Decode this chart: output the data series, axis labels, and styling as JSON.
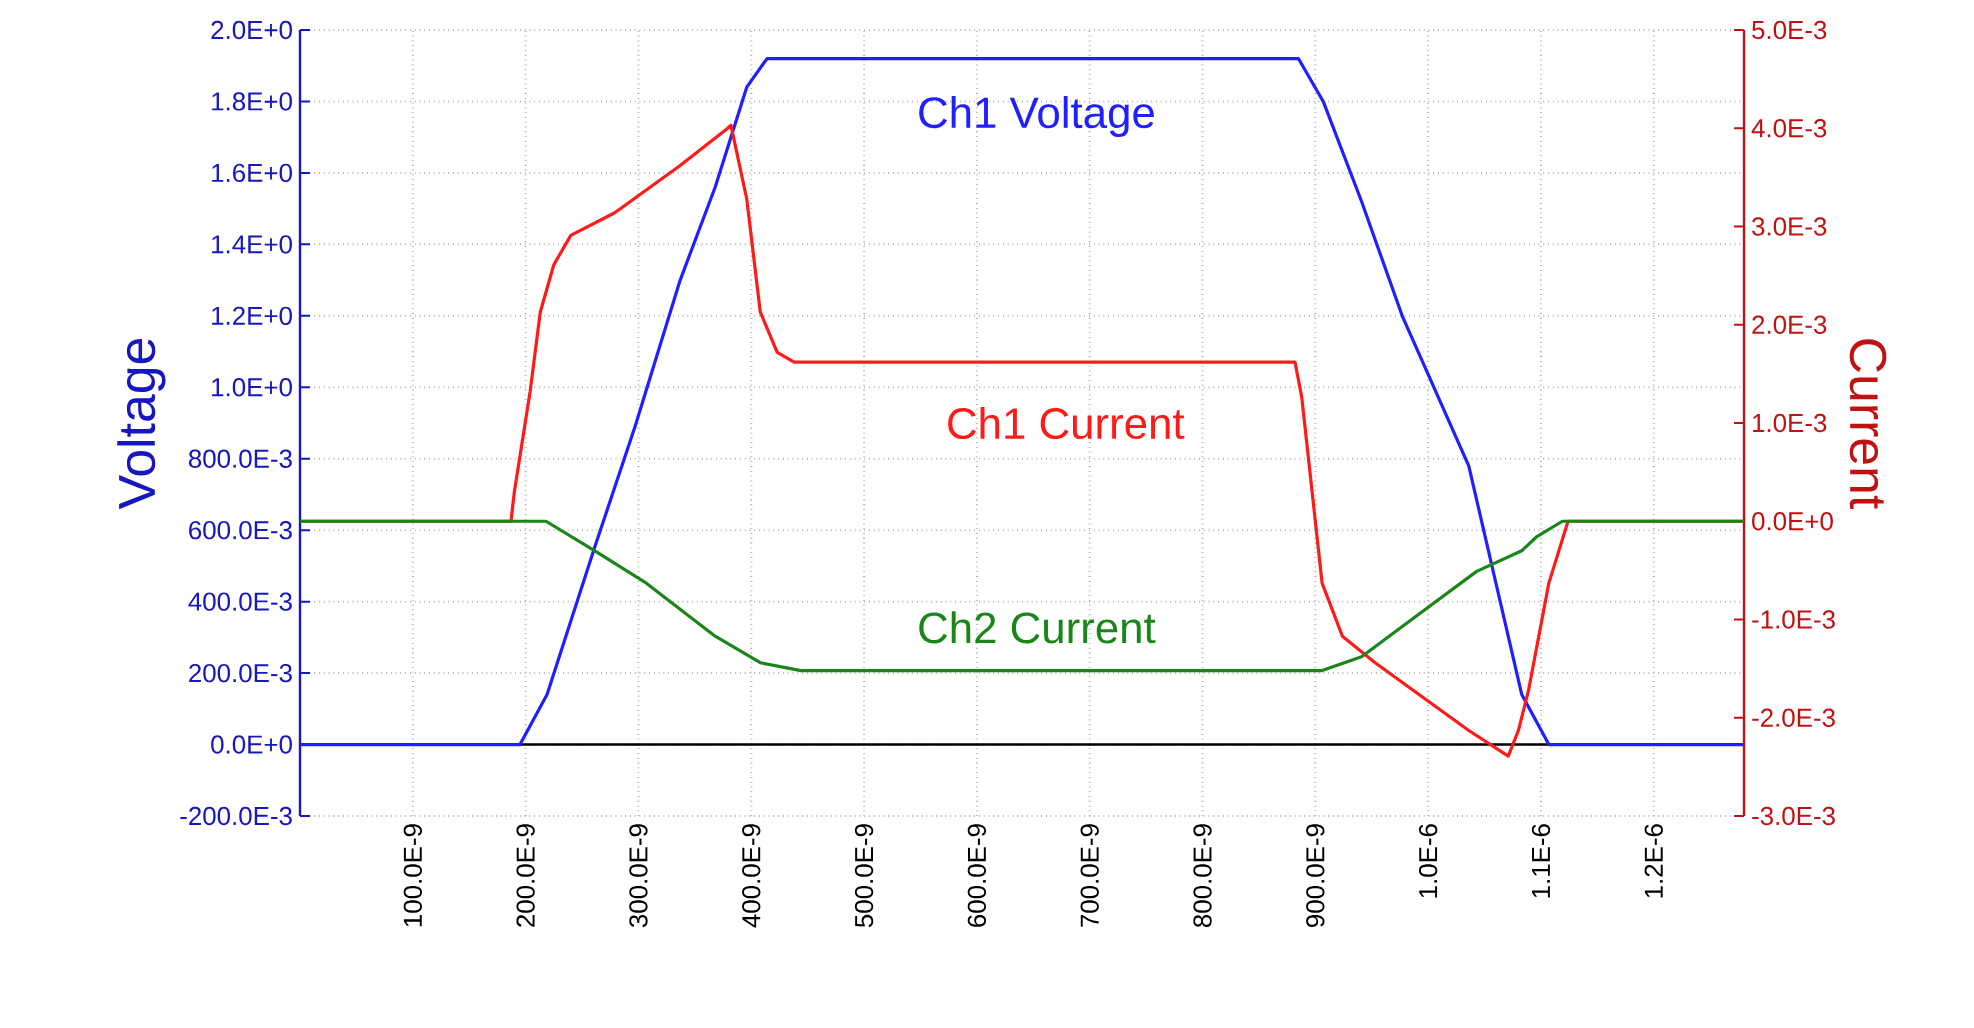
{
  "chart_data": {
    "type": "line",
    "ylabel": "Voltage",
    "y2label": "Current",
    "series": [
      {
        "name": "Ch1 Voltage",
        "color": "#1f1fff",
        "x": [
          0,
          1.95e-07,
          2.19e-07,
          2.61e-07,
          2.97e-07,
          3.37e-07,
          3.68e-07,
          3.85e-07,
          3.96e-07,
          4.14e-07,
          8.85e-07,
          9.07e-07,
          9.41e-07,
          9.77e-07,
          1.036e-06,
          1.083e-06,
          1.107e-06,
          1.28e-06
        ],
        "values": [
          0,
          0,
          0.14,
          0.55,
          0.89,
          1.3,
          1.56,
          1.73,
          1.84,
          1.92,
          1.92,
          1.8,
          1.52,
          1.2,
          0.78,
          0.14,
          0,
          0
        ]
      },
      {
        "name": "Ch1 Current",
        "color": "#ff1a1a",
        "axis": "y2",
        "x": [
          0,
          1.87e-07,
          1.9e-07,
          2.04e-07,
          2.13e-07,
          2.25e-07,
          2.4e-07,
          2.79e-07,
          3.37e-07,
          3.78e-07,
          3.82e-07,
          3.96e-07,
          4.08e-07,
          4.23e-07,
          4.38e-07,
          8.82e-07,
          8.88e-07,
          9.06e-07,
          9.24e-07,
          9.53e-07,
          1.036e-06,
          1.071e-06,
          1.08e-06,
          1.089e-06,
          1.107e-06,
          1.124e-06,
          1.137e-06,
          1.28e-06
        ],
        "values": [
          0,
          0,
          0.0003,
          0.00132,
          0.00213,
          0.00261,
          0.00291,
          0.00314,
          0.00362,
          0.00399,
          0.00403,
          0.00328,
          0.00213,
          0.00172,
          0.00162,
          0.00162,
          0.00126,
          -0.00063,
          -0.00117,
          -0.00144,
          -0.00213,
          -0.00239,
          -0.00213,
          -0.00172,
          -0.00063,
          0,
          0,
          0
        ]
      },
      {
        "name": "Ch2 Current",
        "color": "#1a861a",
        "axis": "y2",
        "x": [
          0,
          2.18e-07,
          2.61e-07,
          3.07e-07,
          3.68e-07,
          4.08e-07,
          4.44e-07,
          9.06e-07,
          9.41e-07,
          9.89e-07,
          1.043e-06,
          1.083e-06,
          1.096e-06,
          1.119e-06,
          1.28e-06
        ],
        "values": [
          0,
          0,
          -0.0003,
          -0.00063,
          -0.00117,
          -0.00144,
          -0.00152,
          -0.00152,
          -0.00138,
          -0.00097,
          -0.00051,
          -0.0003,
          -0.00016,
          0,
          0
        ]
      }
    ],
    "xlim": [
      0,
      1.28e-06
    ],
    "xticks": [
      {
        "value": 1e-07,
        "label": "100.0E-9"
      },
      {
        "value": 2e-07,
        "label": "200.0E-9"
      },
      {
        "value": 3e-07,
        "label": "300.0E-9"
      },
      {
        "value": 4e-07,
        "label": "400.0E-9"
      },
      {
        "value": 5e-07,
        "label": "500.0E-9"
      },
      {
        "value": 6e-07,
        "label": "600.0E-9"
      },
      {
        "value": 7e-07,
        "label": "700.0E-9"
      },
      {
        "value": 8e-07,
        "label": "800.0E-9"
      },
      {
        "value": 9e-07,
        "label": "900.0E-9"
      },
      {
        "value": 1e-06,
        "label": "1.0E-6"
      },
      {
        "value": 1.1e-06,
        "label": "1.1E-6"
      },
      {
        "value": 1.2e-06,
        "label": "1.2E-6"
      }
    ],
    "ylim": [
      -0.2,
      2.0
    ],
    "yticks": [
      {
        "value": -0.2,
        "label": "-200.0E-3"
      },
      {
        "value": 0,
        "label": "0.0E+0"
      },
      {
        "value": 0.2,
        "label": "200.0E-3"
      },
      {
        "value": 0.4,
        "label": "400.0E-3"
      },
      {
        "value": 0.6,
        "label": "600.0E-3"
      },
      {
        "value": 0.8,
        "label": "800.0E-3"
      },
      {
        "value": 1.0,
        "label": "1.0E+0"
      },
      {
        "value": 1.2,
        "label": "1.2E+0"
      },
      {
        "value": 1.4,
        "label": "1.4E+0"
      },
      {
        "value": 1.6,
        "label": "1.6E+0"
      },
      {
        "value": 1.8,
        "label": "1.8E+0"
      },
      {
        "value": 2.0,
        "label": "2.0E+0"
      }
    ],
    "y2lim": [
      -0.003,
      0.005
    ],
    "y2ticks": [
      {
        "value": -0.003,
        "label": "-3.0E-3"
      },
      {
        "value": -0.002,
        "label": "-2.0E-3"
      },
      {
        "value": -0.001,
        "label": "-1.0E-3"
      },
      {
        "value": 0,
        "label": "0.0E+0"
      },
      {
        "value": 0.001,
        "label": "1.0E-3"
      },
      {
        "value": 0.002,
        "label": "2.0E-3"
      },
      {
        "value": 0.003,
        "label": "3.0E-3"
      },
      {
        "value": 0.004,
        "label": "4.0E-3"
      },
      {
        "value": 0.005,
        "label": "5.0E-3"
      }
    ],
    "grid": true,
    "marker": "none",
    "line_style": "solid",
    "ref_lines": [
      {
        "axis": "y",
        "value": 0,
        "color": "#000000"
      }
    ]
  }
}
